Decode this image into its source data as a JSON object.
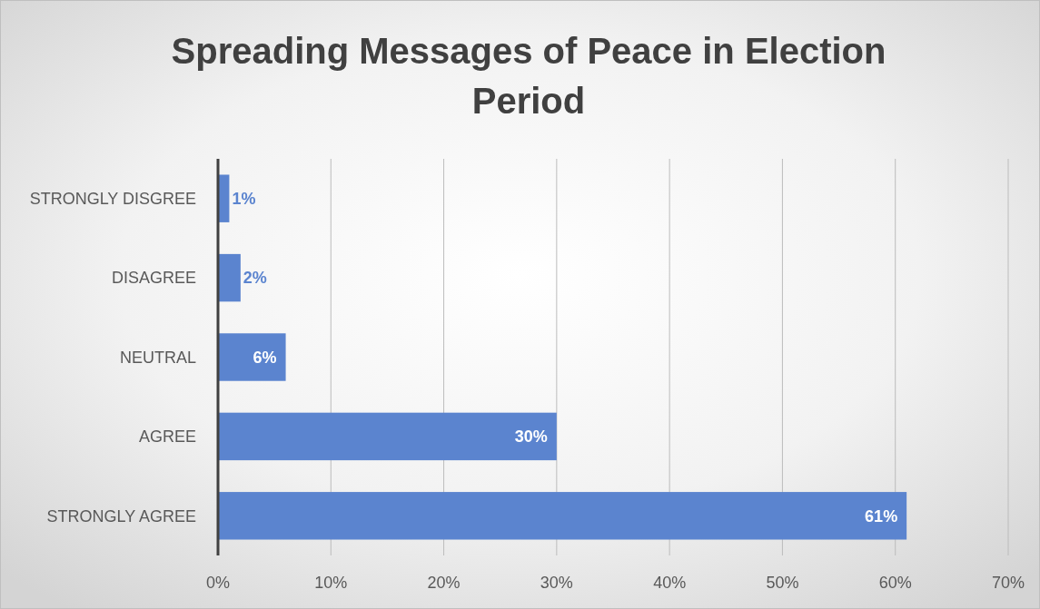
{
  "chart_data": {
    "type": "bar",
    "orientation": "horizontal",
    "title": "Spreading Messages of Peace in Election Period",
    "categories": [
      "STRONGLY DISGREE",
      "DISAGREE",
      "NEUTRAL",
      "AGREE",
      "STRONGLY AGREE"
    ],
    "values": [
      1,
      2,
      6,
      30,
      61
    ],
    "value_labels": [
      "1%",
      "2%",
      "6%",
      "30%",
      "61%"
    ],
    "color": "#5b84cf",
    "xlim": [
      0,
      70
    ],
    "xticks": [
      {
        "value": 0,
        "label": "0%"
      },
      {
        "value": 10,
        "label": "10%"
      },
      {
        "value": 20,
        "label": "20%"
      },
      {
        "value": 30,
        "label": "30%"
      },
      {
        "value": 40,
        "label": "40%"
      },
      {
        "value": 50,
        "label": "50%"
      },
      {
        "value": 60,
        "label": "60%"
      },
      {
        "value": 70,
        "label": "70%"
      }
    ],
    "grid": "x"
  }
}
